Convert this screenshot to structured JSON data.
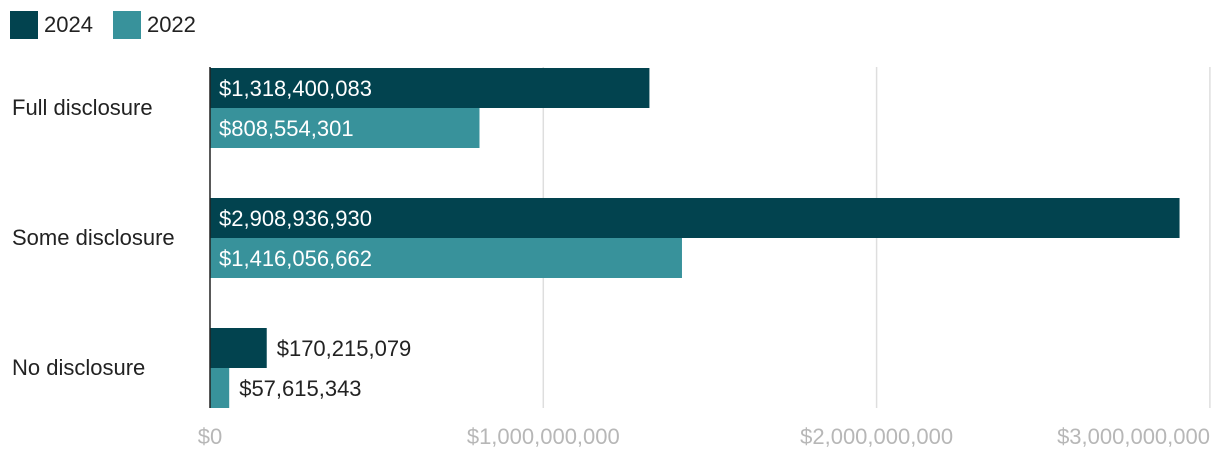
{
  "chart_data": {
    "type": "bar",
    "orientation": "horizontal",
    "categories": [
      "Full disclosure",
      "Some disclosure",
      "No disclosure"
    ],
    "series": [
      {
        "name": "2024",
        "color": "#02434f",
        "values": [
          1318400083,
          2908936930,
          170215079
        ],
        "labels": [
          "$1,318,400,083",
          "$2,908,936,930",
          "$170,215,079"
        ]
      },
      {
        "name": "2022",
        "color": "#38929b",
        "values": [
          808554301,
          1416056662,
          57615343
        ],
        "labels": [
          "$808,554,301",
          "$1,416,056,662",
          "$57,615,343"
        ]
      }
    ],
    "xlim": [
      0,
      3000000000
    ],
    "ticks": [
      0,
      1000000000,
      2000000000,
      3000000000
    ],
    "tick_labels": [
      "$0",
      "$1,000,000,000",
      "$2,000,000,000",
      "$3,000,000,000"
    ],
    "legend_position": "top-left",
    "grid": true
  }
}
